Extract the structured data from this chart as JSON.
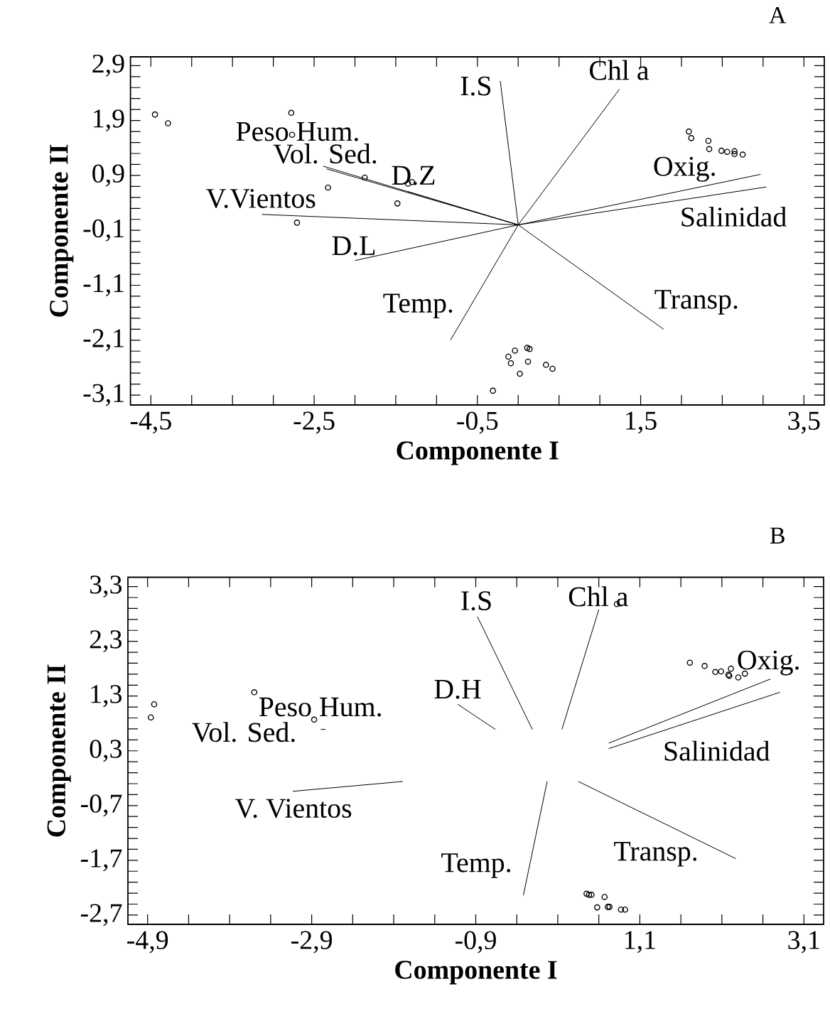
{
  "chart_data": [
    {
      "type": "scatter",
      "title": "A",
      "xlabel": "Componente I",
      "ylabel": "Componente II",
      "marker": "circle",
      "xlim": [
        -4.75,
        3.75
      ],
      "ylim": [
        -3.28,
        3.06
      ],
      "xticks": [
        {
          "value": -4.5,
          "label": "-4,5"
        },
        {
          "value": -4.0,
          "label": null
        },
        {
          "value": -3.5,
          "label": null
        },
        {
          "value": -3.0,
          "label": null
        },
        {
          "value": -2.5,
          "label": "-2,5"
        },
        {
          "value": -2.0,
          "label": null
        },
        {
          "value": -1.5,
          "label": null
        },
        {
          "value": -1.0,
          "label": null
        },
        {
          "value": -0.5,
          "label": "-0,5"
        },
        {
          "value": 0.0,
          "label": null
        },
        {
          "value": 0.5,
          "label": null
        },
        {
          "value": 1.0,
          "label": null
        },
        {
          "value": 1.5,
          "label": "1,5"
        },
        {
          "value": 2.0,
          "label": null
        },
        {
          "value": 2.5,
          "label": null
        },
        {
          "value": 3.0,
          "label": null
        },
        {
          "value": 3.5,
          "label": "3,5"
        }
      ],
      "yticks": [
        {
          "value": -3.1,
          "label": "-3,1"
        },
        {
          "value": -2.9,
          "label": null
        },
        {
          "value": -2.7,
          "label": null
        },
        {
          "value": -2.5,
          "label": null
        },
        {
          "value": -2.3,
          "label": null
        },
        {
          "value": -2.1,
          "label": "-2,1"
        },
        {
          "value": -1.9,
          "label": null
        },
        {
          "value": -1.7,
          "label": null
        },
        {
          "value": -1.5,
          "label": null
        },
        {
          "value": -1.3,
          "label": null
        },
        {
          "value": -1.1,
          "label": "-1,1"
        },
        {
          "value": -0.9,
          "label": null
        },
        {
          "value": -0.7,
          "label": null
        },
        {
          "value": -0.5,
          "label": null
        },
        {
          "value": -0.3,
          "label": null
        },
        {
          "value": -0.1,
          "label": "-0,1"
        },
        {
          "value": 0.1,
          "label": null
        },
        {
          "value": 0.3,
          "label": null
        },
        {
          "value": 0.5,
          "label": null
        },
        {
          "value": 0.7,
          "label": null
        },
        {
          "value": 0.9,
          "label": "0,9"
        },
        {
          "value": 1.1,
          "label": null
        },
        {
          "value": 1.3,
          "label": null
        },
        {
          "value": 1.5,
          "label": null
        },
        {
          "value": 1.7,
          "label": null
        },
        {
          "value": 1.9,
          "label": "1,9"
        },
        {
          "value": 2.1,
          "label": null
        },
        {
          "value": 2.3,
          "label": null
        },
        {
          "value": 2.5,
          "label": null
        },
        {
          "value": 2.7,
          "label": null
        },
        {
          "value": 2.9,
          "label": "2,9"
        }
      ],
      "series": [
        {
          "color": "#000000",
          "x": [
            -4.45,
            -4.29,
            -2.78,
            -2.77,
            -1.88,
            -2.33,
            -1.48,
            -2.71,
            -1.35,
            -1.3,
            -0.31,
            -0.12,
            -0.04,
            -0.09,
            0.02,
            0.11,
            0.14,
            0.12,
            0.34,
            0.42,
            2.09,
            2.12,
            2.33,
            2.34,
            2.49,
            2.56,
            2.65,
            2.65,
            2.75
          ],
          "values": [
            2.01,
            1.85,
            2.04,
            1.64,
            0.86,
            0.68,
            0.39,
            0.04,
            0.75,
            0.78,
            -3.02,
            -2.4,
            -2.29,
            -2.52,
            -2.71,
            -2.24,
            -2.26,
            -2.49,
            -2.55,
            -2.62,
            1.7,
            1.58,
            1.53,
            1.38,
            1.35,
            1.33,
            1.34,
            1.29,
            1.28
          ]
        },
        {
          "type": "line",
          "marker": "none",
          "color": "#000000",
          "x": [
            0,
            -0.22,
            null,
            0,
            1.24,
            null,
            0,
            -2.39,
            null,
            0,
            -2.35,
            null,
            0,
            -1.36,
            null,
            0,
            -3.14,
            null,
            0,
            -2.0,
            null,
            0,
            -0.83,
            null,
            0,
            1.78,
            null,
            0,
            2.97,
            null,
            0,
            3.04
          ],
          "values": [
            0,
            2.62,
            null,
            0,
            2.47,
            null,
            0,
            1.07,
            null,
            0,
            1.02,
            null,
            0,
            0.61,
            null,
            0,
            0.19,
            null,
            0,
            -0.65,
            null,
            0,
            -2.1,
            null,
            0,
            -1.9,
            null,
            0,
            0.92,
            null,
            0,
            0.69
          ]
        }
      ],
      "annotations": [
        "I.S",
        "Chl a",
        "Peso Hum.",
        "Vol. Sed.",
        "D.Z",
        "V.Vientos",
        "D.L",
        "Temp.",
        "Oxig.",
        "Salinidad",
        "Transp."
      ]
    },
    {
      "type": "scatter",
      "title": "B",
      "xlabel": "Componente I",
      "ylabel": "Componente II",
      "marker": "circle",
      "xlim": [
        -5.14,
        3.34
      ],
      "ylim": [
        -2.87,
        3.47
      ],
      "xticks": [
        {
          "value": -4.9,
          "label": "-4,9"
        },
        {
          "value": -4.4,
          "label": null
        },
        {
          "value": -3.9,
          "label": null
        },
        {
          "value": -3.4,
          "label": null
        },
        {
          "value": -2.9,
          "label": "-2,9"
        },
        {
          "value": -2.4,
          "label": null
        },
        {
          "value": -1.9,
          "label": null
        },
        {
          "value": -1.4,
          "label": null
        },
        {
          "value": -0.9,
          "label": "-0,9"
        },
        {
          "value": -0.4,
          "label": null
        },
        {
          "value": 0.1,
          "label": null
        },
        {
          "value": 0.6,
          "label": null
        },
        {
          "value": 1.1,
          "label": "1,1"
        },
        {
          "value": 1.6,
          "label": null
        },
        {
          "value": 2.1,
          "label": null
        },
        {
          "value": 2.6,
          "label": null
        },
        {
          "value": 3.1,
          "label": "3,1"
        }
      ],
      "yticks": [
        {
          "value": -2.7,
          "label": "-2,7"
        },
        {
          "value": -2.5,
          "label": null
        },
        {
          "value": -2.3,
          "label": null
        },
        {
          "value": -2.1,
          "label": null
        },
        {
          "value": -1.9,
          "label": null
        },
        {
          "value": -1.7,
          "label": "-1,7"
        },
        {
          "value": -1.5,
          "label": null
        },
        {
          "value": -1.3,
          "label": null
        },
        {
          "value": -1.1,
          "label": null
        },
        {
          "value": -0.9,
          "label": null
        },
        {
          "value": -0.7,
          "label": "-0,7"
        },
        {
          "value": -0.5,
          "label": null
        },
        {
          "value": -0.3,
          "label": null
        },
        {
          "value": -0.1,
          "label": null
        },
        {
          "value": 0.1,
          "label": null
        },
        {
          "value": 0.3,
          "label": "0,3"
        },
        {
          "value": 0.5,
          "label": null
        },
        {
          "value": 0.7,
          "label": null
        },
        {
          "value": 0.9,
          "label": null
        },
        {
          "value": 1.1,
          "label": null
        },
        {
          "value": 1.3,
          "label": "1,3"
        },
        {
          "value": 1.5,
          "label": null
        },
        {
          "value": 1.7,
          "label": null
        },
        {
          "value": 1.9,
          "label": null
        },
        {
          "value": 2.1,
          "label": null
        },
        {
          "value": 2.3,
          "label": "2,3"
        },
        {
          "value": 2.5,
          "label": null
        },
        {
          "value": 2.7,
          "label": null
        },
        {
          "value": 2.9,
          "label": null
        },
        {
          "value": 3.1,
          "label": null
        },
        {
          "value": 3.3,
          "label": "3,3"
        }
      ],
      "series": [
        {
          "color": "#000000",
          "x": [
            -4.82,
            -4.86,
            -3.6,
            -2.87,
            0.82,
            1.71,
            1.89,
            2.02,
            2.09,
            2.18,
            2.19,
            2.21,
            2.3,
            2.38,
            0.45,
            0.48,
            0.51,
            0.67,
            0.58,
            0.71,
            0.73,
            0.87,
            0.92
          ],
          "values": [
            1.15,
            0.91,
            1.37,
            0.87,
            2.98,
            1.91,
            1.85,
            1.74,
            1.75,
            1.69,
            1.67,
            1.8,
            1.64,
            1.71,
            -2.31,
            -2.33,
            -2.33,
            -2.37,
            -2.56,
            -2.55,
            -2.55,
            -2.6,
            -2.6
          ]
        },
        {
          "type": "line",
          "marker": "none",
          "color": "#000000",
          "x": [
            -0.21,
            -0.88,
            null,
            0.15,
            0.6,
            null,
            -0.66,
            -1.12,
            null,
            0.72,
            2.69,
            null,
            0.72,
            2.81,
            null,
            0.35,
            2.27,
            null,
            -0.03,
            -0.32,
            null,
            -1.79,
            -3.13,
            null,
            -2.73,
            -2.79
          ],
          "values": [
            0.69,
            2.75,
            null,
            0.69,
            2.88,
            null,
            0.69,
            1.15,
            null,
            0.44,
            1.61,
            null,
            0.34,
            1.37,
            null,
            -0.26,
            -1.67,
            null,
            -0.26,
            -2.34,
            null,
            -0.26,
            -0.44,
            null,
            0.69,
            0.69
          ]
        }
      ],
      "annotations": [
        "I.S",
        "Chl a",
        "D.H",
        "Peso Hum.",
        "Vol. Sed.",
        "V. Vientos",
        "Temp.",
        "Oxig.",
        "Salinidad",
        "Transp."
      ]
    }
  ]
}
